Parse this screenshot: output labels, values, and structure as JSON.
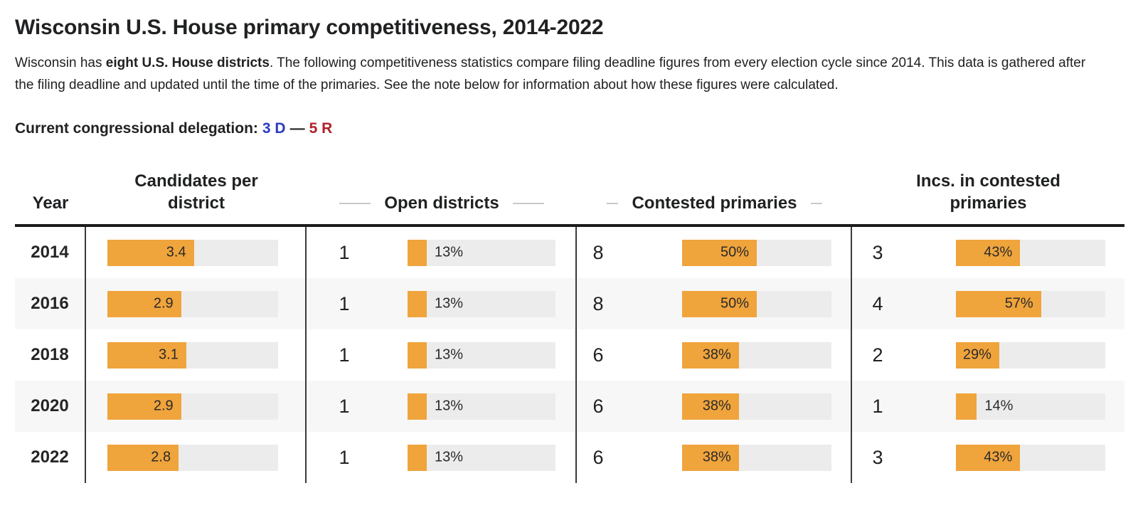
{
  "page": {
    "title": "Wisconsin U.S. House primary competitiveness, 2014-2022",
    "intro": {
      "pre": "Wisconsin has ",
      "bold": "eight U.S. House districts",
      "post": ". The following competitiveness statistics compare filing deadline figures from every election cycle since 2014. This data is gathered after the filing deadline and updated until the time of the primaries. See the note below for information about how these figures were calculated."
    },
    "delegation": {
      "label": "Current congressional delegation:",
      "dem": "3 D",
      "separator": "—",
      "rep": "5 R",
      "dem_color": "#2a3cc0",
      "rep_color": "#b0212b"
    }
  },
  "chart_data": {
    "type": "table",
    "title": "Wisconsin U.S. House primary competitiveness, 2014-2022",
    "headers": [
      "Year",
      "Candidates per district",
      "Open districts",
      "Contested primaries",
      "Incs. in contested primaries"
    ],
    "bar_color": "#f0a43c",
    "track_color": "#ececec",
    "candidates_bar_range": [
      0,
      6.7
    ],
    "percent_bar_range": [
      0,
      100
    ],
    "rows": [
      {
        "year": "2014",
        "candidates_value": 3.4,
        "candidates_label": "3.4",
        "open_count": "1",
        "open_pct": 13,
        "open_pct_label": "13%",
        "contested_count": "8",
        "contested_pct": 50,
        "contested_pct_label": "50%",
        "incs_count": "3",
        "incs_pct": 43,
        "incs_pct_label": "43%"
      },
      {
        "year": "2016",
        "candidates_value": 2.9,
        "candidates_label": "2.9",
        "open_count": "1",
        "open_pct": 13,
        "open_pct_label": "13%",
        "contested_count": "8",
        "contested_pct": 50,
        "contested_pct_label": "50%",
        "incs_count": "4",
        "incs_pct": 57,
        "incs_pct_label": "57%"
      },
      {
        "year": "2018",
        "candidates_value": 3.1,
        "candidates_label": "3.1",
        "open_count": "1",
        "open_pct": 13,
        "open_pct_label": "13%",
        "contested_count": "6",
        "contested_pct": 38,
        "contested_pct_label": "38%",
        "incs_count": "2",
        "incs_pct": 29,
        "incs_pct_label": "29%"
      },
      {
        "year": "2020",
        "candidates_value": 2.9,
        "candidates_label": "2.9",
        "open_count": "1",
        "open_pct": 13,
        "open_pct_label": "13%",
        "contested_count": "6",
        "contested_pct": 38,
        "contested_pct_label": "38%",
        "incs_count": "1",
        "incs_pct": 14,
        "incs_pct_label": "14%"
      },
      {
        "year": "2022",
        "candidates_value": 2.8,
        "candidates_label": "2.8",
        "open_count": "1",
        "open_pct": 13,
        "open_pct_label": "13%",
        "contested_count": "6",
        "contested_pct": 38,
        "contested_pct_label": "38%",
        "incs_count": "3",
        "incs_pct": 43,
        "incs_pct_label": "43%"
      }
    ]
  }
}
